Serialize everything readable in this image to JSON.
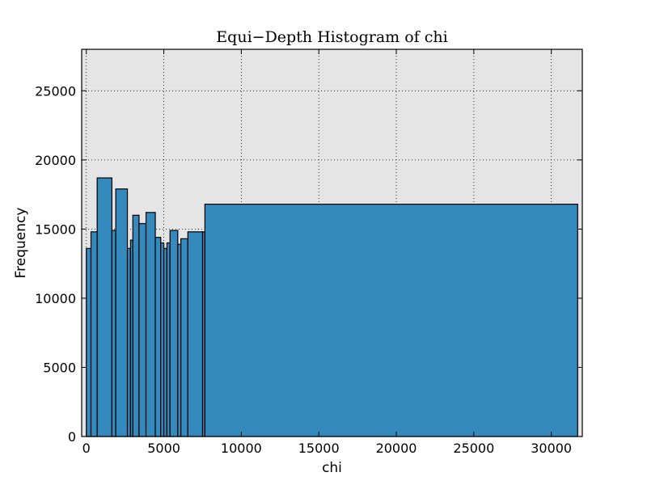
{
  "chart_data": {
    "type": "bar",
    "title": "Equi−Depth Histogram of chi",
    "xlabel": "chi",
    "ylabel": "Frequency",
    "xlim": [
      -300,
      32000
    ],
    "ylim": [
      0,
      28000
    ],
    "xticks": [
      0,
      5000,
      10000,
      15000,
      20000,
      25000,
      30000
    ],
    "yticks": [
      0,
      5000,
      10000,
      15000,
      20000,
      25000
    ],
    "grid": true,
    "background": "#e5e5e5",
    "bar_color": "#348abd",
    "bins": [
      {
        "start": 0,
        "end": 300,
        "value": 13600
      },
      {
        "start": 300,
        "end": 700,
        "value": 14800
      },
      {
        "start": 700,
        "end": 1650,
        "value": 18700
      },
      {
        "start": 1650,
        "end": 1900,
        "value": 14900
      },
      {
        "start": 1900,
        "end": 2650,
        "value": 17900
      },
      {
        "start": 2650,
        "end": 2850,
        "value": 13600
      },
      {
        "start": 2850,
        "end": 3000,
        "value": 14200
      },
      {
        "start": 3000,
        "end": 3400,
        "value": 16000
      },
      {
        "start": 3400,
        "end": 3850,
        "value": 15400
      },
      {
        "start": 3850,
        "end": 4450,
        "value": 16200
      },
      {
        "start": 4450,
        "end": 4800,
        "value": 14400
      },
      {
        "start": 4800,
        "end": 5000,
        "value": 14000
      },
      {
        "start": 5000,
        "end": 5200,
        "value": 13600
      },
      {
        "start": 5200,
        "end": 5400,
        "value": 14000
      },
      {
        "start": 5400,
        "end": 5900,
        "value": 14900
      },
      {
        "start": 5900,
        "end": 6100,
        "value": 13900
      },
      {
        "start": 6100,
        "end": 6550,
        "value": 14300
      },
      {
        "start": 6550,
        "end": 7500,
        "value": 14800
      },
      {
        "start": 7500,
        "end": 7650,
        "value": 14800
      },
      {
        "start": 7650,
        "end": 31700,
        "value": 16800
      }
    ]
  }
}
